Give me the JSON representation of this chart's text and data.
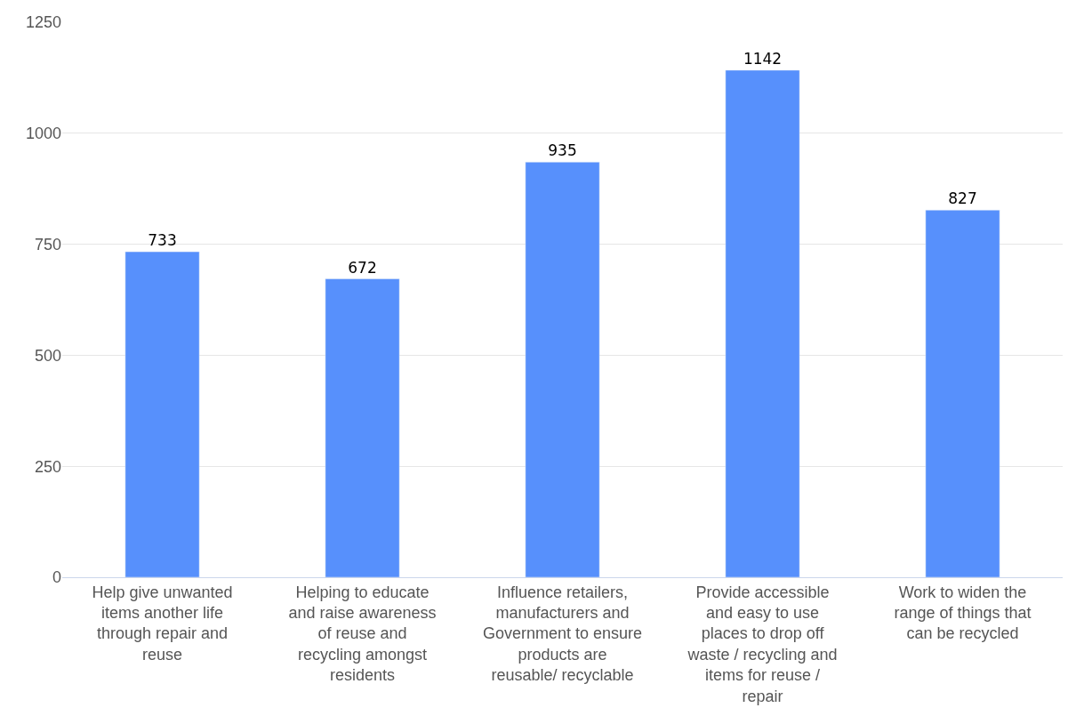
{
  "chart_data": {
    "type": "bar",
    "categories": [
      "Help give unwanted items another life through repair and reuse",
      "Helping to educate and raise awareness of reuse and recycling amongst residents",
      "Influence retailers, manufacturers and Government to ensure products are reusable/ recyclable",
      "Provide accessible and easy to use places to drop off waste / recycling and items for reuse / repair",
      "Work to widen the range of things that can be recycled"
    ],
    "values": [
      733,
      672,
      935,
      1142,
      827
    ],
    "color": "#5790fc",
    "ylim": [
      0,
      1250
    ],
    "yticks": [
      0,
      250,
      500,
      750,
      1000,
      1250
    ],
    "grid": "y",
    "data_labels": true,
    "legend": false
  }
}
